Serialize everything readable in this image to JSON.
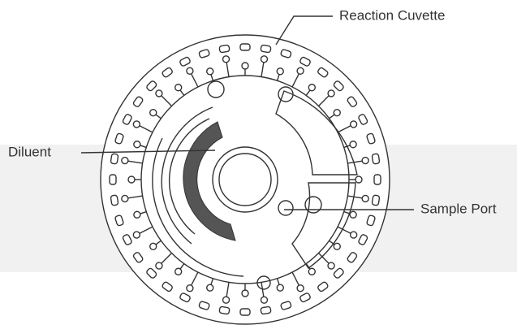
{
  "labels": {
    "reaction_cuvette": "Reaction Cuvette",
    "diluent": "Diluent",
    "sample_port": "Sample Port"
  }
}
